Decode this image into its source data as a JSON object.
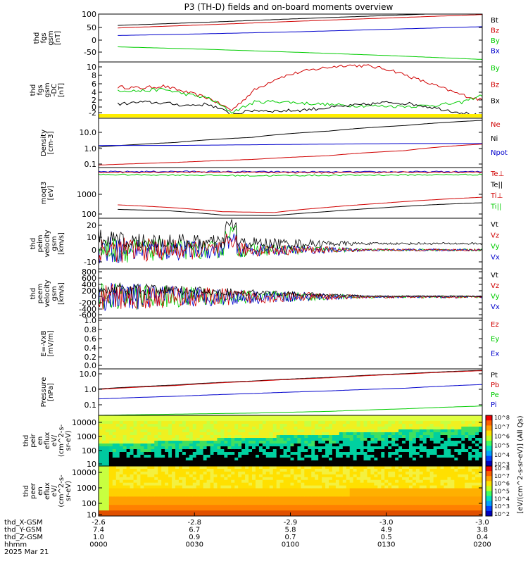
{
  "title": "P3 (TH-D) fields and on-board moments overview",
  "colors": {
    "black": "#000000",
    "red": "#d00000",
    "blue": "#0000cc",
    "green": "#00cc00",
    "yellow": "#ffee00",
    "ylabel_text": "#000000"
  },
  "chart_data": [
    {
      "type": "line",
      "id": "fgs_gsm",
      "ylabel_lines": [
        "thd",
        "fgs",
        "gsm",
        "[nT]"
      ],
      "yticks": [
        "100",
        "50",
        "0",
        "-50"
      ],
      "ylim": [
        -90,
        100
      ],
      "legend": [
        {
          "label": "Bt",
          "color": "#000000"
        },
        {
          "label": "Bz",
          "color": "#d00000"
        },
        {
          "label": "By",
          "color": "#00cc00"
        },
        {
          "label": "Bx",
          "color": "#0000cc"
        }
      ],
      "series": [
        {
          "color": "#000000",
          "x_start": 0.05,
          "y": [
            55,
            68,
            82,
            95,
            108
          ]
        },
        {
          "color": "#d00000",
          "x_start": 0.05,
          "y": [
            45,
            58,
            72,
            85,
            98
          ]
        },
        {
          "color": "#0000cc",
          "x_start": 0.05,
          "y": [
            15,
            22,
            30,
            40,
            50
          ]
        },
        {
          "color": "#00cc00",
          "x_start": 0.05,
          "y": [
            -30,
            -40,
            -52,
            -65,
            -80
          ]
        }
      ]
    },
    {
      "type": "line",
      "id": "fgs_gsm_dc",
      "ylabel_lines": [
        "thd",
        "fgs",
        "gsm",
        "-DC",
        "[nT]"
      ],
      "yticks": [
        "10",
        "8",
        "6",
        "4",
        "2",
        "0",
        "-2"
      ],
      "ylim": [
        -3,
        11
      ],
      "legend": [
        {
          "label": "By",
          "color": "#00cc00"
        },
        {
          "label": "Bz",
          "color": "#d00000"
        },
        {
          "label": "Bx",
          "color": "#000000"
        }
      ],
      "series": [
        {
          "color": "#d00000",
          "x_start": 0.05,
          "y": [
            4.8,
            4.5,
            5.0,
            3.5,
            2.0,
            -1.0,
            4.0,
            7.0,
            8.5,
            9.5,
            10.2,
            10.0,
            9.0,
            7.0,
            5.0,
            3.0,
            1.5
          ]
        },
        {
          "color": "#00cc00",
          "x_start": 0.05,
          "y": [
            4.0,
            3.8,
            4.2,
            3.0,
            2.0,
            -1.5,
            1.0,
            1.2,
            0.8,
            0.5,
            0.2,
            0.1,
            0.0,
            0.0,
            0.3,
            0.8,
            2.8
          ]
        },
        {
          "color": "#000000",
          "x_start": 0.05,
          "y": [
            0.5,
            1.0,
            0.8,
            0.2,
            0.5,
            -2.0,
            -1.0,
            -1.2,
            -1.0,
            -0.5,
            0.0,
            0.5,
            1.0,
            0.5,
            -0.5,
            -1.5,
            -2.5
          ]
        }
      ],
      "flag_bar": {
        "color": "#ffee00"
      }
    },
    {
      "type": "line",
      "id": "density",
      "ylabel_lines": [
        "Density",
        "[cm-3]"
      ],
      "yticks": [
        "10.0",
        "1.0",
        "0.1"
      ],
      "log": true,
      "ylim": [
        0.05,
        40
      ],
      "legend": [
        {
          "label": "Ne",
          "color": "#d00000"
        },
        {
          "label": "Ni",
          "color": "#000000"
        },
        {
          "label": "Npot",
          "color": "#0000cc"
        }
      ],
      "series": [
        {
          "color": "#000000",
          "x_start": 0.0,
          "y": [
            0.8,
            1.5,
            3,
            7,
            15,
            30
          ]
        },
        {
          "color": "#0000cc",
          "x_start": 0.0,
          "y": [
            1.0,
            1.0,
            1.1,
            1.2,
            1.3,
            1.3
          ]
        },
        {
          "color": "#d00000",
          "x_start": 0.0,
          "y": [
            0.07,
            0.1,
            0.15,
            0.25,
            0.5,
            1.2
          ]
        }
      ]
    },
    {
      "type": "line",
      "id": "temperature",
      "ylabel_lines": [
        "moqt3",
        "[eV]"
      ],
      "yticks": [
        "1000",
        "100"
      ],
      "log": true,
      "ylim": [
        80,
        6000
      ],
      "legend": [
        {
          "label": "Te⊥",
          "color": "#d00000"
        },
        {
          "label": "Te||",
          "color": "#000000"
        },
        {
          "label": "Ti⊥",
          "color": "#d00000"
        },
        {
          "label": "Ti||",
          "color": "#00cc00"
        }
      ],
      "series": [
        {
          "color": "#0000cc",
          "x_start": 0.0,
          "y": [
            4200,
            4300,
            4200,
            4100,
            4200,
            4200
          ]
        },
        {
          "color": "#d00000",
          "x_start": 0.0,
          "y": [
            4000,
            4100,
            4000,
            3900,
            4000,
            4000
          ]
        },
        {
          "color": "#00cc00",
          "x_start": 0.0,
          "y": [
            3300,
            3200,
            3000,
            3100,
            3200,
            3300
          ]
        },
        {
          "color": "#d00000",
          "x_start": 0.05,
          "y": [
            250,
            200,
            140,
            130,
            200,
            280,
            380,
            480
          ]
        },
        {
          "color": "#000000",
          "x_start": 0.05,
          "y": [
            170,
            150,
            105,
            100,
            140,
            190,
            250,
            300
          ]
        }
      ]
    },
    {
      "type": "line",
      "id": "peim_velocity",
      "ylabel_lines": [
        "thd",
        "peim",
        "velocity",
        "gsm",
        "[km/s]"
      ],
      "yticks": [
        "20",
        "10",
        "0",
        "-10"
      ],
      "ylim": [
        -15,
        25
      ],
      "legend": [
        {
          "label": "Vt",
          "color": "#000000"
        },
        {
          "label": "Vz",
          "color": "#d00000"
        },
        {
          "label": "Vy",
          "color": "#00cc00"
        },
        {
          "label": "Vx",
          "color": "#0000cc"
        }
      ]
    },
    {
      "type": "line",
      "id": "peem_velocity",
      "ylabel_lines": [
        "thd",
        "peem",
        "velocity",
        "gsm",
        "[km/s]"
      ],
      "yticks": [
        "800",
        "600",
        "400",
        "200",
        "0",
        "-200",
        "-400",
        "-600"
      ],
      "ylim": [
        -650,
        850
      ],
      "legend": [
        {
          "label": "Vt",
          "color": "#000000"
        },
        {
          "label": "Vz",
          "color": "#d00000"
        },
        {
          "label": "Vy",
          "color": "#00cc00"
        },
        {
          "label": "Vx",
          "color": "#0000cc"
        }
      ]
    },
    {
      "type": "line",
      "id": "efield",
      "ylabel_lines": [
        "E=-VxB",
        "[mV/m]"
      ],
      "yticks": [
        "1.0",
        "0.8",
        "0.6",
        "0.4",
        "0.2",
        "0.0"
      ],
      "ylim": [
        0,
        1
      ],
      "legend": [
        {
          "label": "Ez",
          "color": "#d00000"
        },
        {
          "label": "Ey",
          "color": "#00cc00"
        },
        {
          "label": "Ex",
          "color": "#0000cc"
        }
      ],
      "series": []
    },
    {
      "type": "line",
      "id": "pressure",
      "ylabel_lines": [
        "Pressure",
        "[nPa]"
      ],
      "yticks": [
        "10.0",
        "1.0",
        "0.1"
      ],
      "log": true,
      "ylim": [
        0.03,
        12
      ],
      "legend": [
        {
          "label": "Pt",
          "color": "#000000"
        },
        {
          "label": "Pb",
          "color": "#d00000"
        },
        {
          "label": "Pe",
          "color": "#00cc00"
        },
        {
          "label": "Pi",
          "color": "#0000cc"
        }
      ],
      "series": [
        {
          "color": "#000000",
          "x_start": 0.0,
          "y": [
            0.9,
            1.5,
            2.5,
            4,
            6.5,
            10
          ]
        },
        {
          "color": "#d00000",
          "x_start": 0.0,
          "y": [
            0.85,
            1.4,
            2.4,
            3.8,
            6.2,
            9.5
          ]
        },
        {
          "color": "#0000cc",
          "x_start": 0.0,
          "y": [
            0.25,
            0.35,
            0.5,
            0.7,
            1.0,
            1.6
          ]
        },
        {
          "color": "#00cc00",
          "x_start": 0.0,
          "y": [
            0.03,
            0.035,
            0.04,
            0.05,
            0.07,
            0.1
          ]
        }
      ]
    },
    {
      "type": "heatmap",
      "id": "peir_eflux",
      "ylabel_lines": [
        "thd",
        "peir",
        "en",
        "eflux",
        "eV/",
        "(cm^2-s-",
        "sr-eV)"
      ],
      "yticks": [
        "10000",
        "1000",
        "100",
        "10"
      ],
      "log": true,
      "ylim": [
        6,
        25000
      ]
    },
    {
      "type": "heatmap",
      "id": "peer_eflux",
      "ylabel_lines": [
        "thd",
        "peer",
        "en",
        "eflux",
        "eV/",
        "(cm^2-s-",
        "sr-eV)"
      ],
      "yticks": [
        "10000",
        "1000",
        "100",
        "10"
      ],
      "log": true,
      "ylim": [
        6,
        25000
      ]
    }
  ],
  "colorbar": {
    "label": "[eV/(cm^2-s-sr-eV)] (All Qs)",
    "ticks_upper": [
      "10^8",
      "10^7",
      "10^6",
      "10^5",
      "10^4",
      "10^3"
    ],
    "ticks_lower": [
      "10^8",
      "10^7",
      "10^6",
      "10^5",
      "10^4",
      "10^3",
      "10^2"
    ]
  },
  "x_axis": {
    "ticks": [
      "-2.6",
      "-2.8",
      "-2.9",
      "-3.0",
      "-3.0"
    ],
    "rows": [
      {
        "label": "thd_X-GSM",
        "values": [
          "-2.6",
          "-2.8",
          "-2.9",
          "-3.0",
          "-3.0"
        ]
      },
      {
        "label": "thd_Y-GSM",
        "values": [
          "7.4",
          "6.7",
          "5.8",
          "4.9",
          "3.8"
        ]
      },
      {
        "label": "thd_Z-GSM",
        "values": [
          "1.0",
          "0.9",
          "0.7",
          "0.5",
          "0.4"
        ]
      },
      {
        "label": "hhmm",
        "values": [
          "0000",
          "0030",
          "0100",
          "0130",
          "0200"
        ]
      }
    ],
    "date": "2025 Mar 21"
  }
}
